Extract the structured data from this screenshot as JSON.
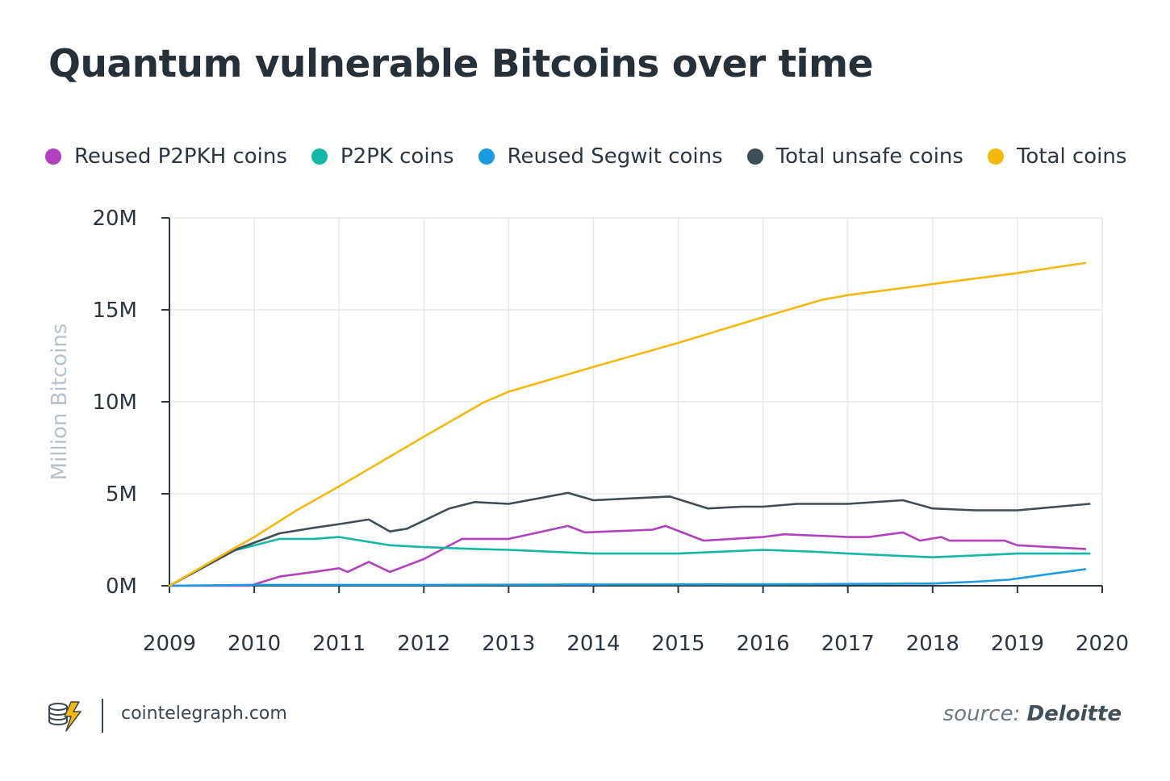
{
  "title": "Quantum vulnerable Bitcoins over time",
  "footer": {
    "site": "cointelegraph.com",
    "source_label": "source:",
    "source_name": "Deloitte"
  },
  "colors": {
    "axis": "#2b3640",
    "grid": "#e6e9ec",
    "ylabel": "#b7c2ca"
  },
  "chart_data": {
    "type": "line",
    "title": "Quantum vulnerable Bitcoins over time",
    "xlabel": "",
    "ylabel": "Million Bitcoins",
    "xlim": [
      2009,
      2020
    ],
    "ylim": [
      0,
      20
    ],
    "x_ticks": [
      2009,
      2010,
      2011,
      2012,
      2013,
      2014,
      2015,
      2016,
      2017,
      2018,
      2019,
      2020
    ],
    "x_tick_labels": [
      "2009",
      "2010",
      "2011",
      "2012",
      "2013",
      "2014",
      "2015",
      "2016",
      "2017",
      "2018",
      "2019",
      "2020"
    ],
    "y_ticks": [
      0,
      5,
      10,
      15,
      20
    ],
    "y_tick_labels": [
      "0M",
      "5M",
      "10M",
      "15M",
      "20M"
    ],
    "grid": true,
    "legend_position": "top",
    "series": [
      {
        "name": "Reused P2PKH coins",
        "color": "#b341bf",
        "points": [
          [
            2009.0,
            0
          ],
          [
            2009.95,
            0
          ],
          [
            2010.3,
            0.5
          ],
          [
            2010.7,
            0.75
          ],
          [
            2011.0,
            0.95
          ],
          [
            2011.1,
            0.75
          ],
          [
            2011.35,
            1.3
          ],
          [
            2011.6,
            0.75
          ],
          [
            2012.0,
            1.45
          ],
          [
            2012.45,
            2.55
          ],
          [
            2013.0,
            2.55
          ],
          [
            2013.7,
            3.25
          ],
          [
            2013.9,
            2.9
          ],
          [
            2014.7,
            3.05
          ],
          [
            2014.85,
            3.25
          ],
          [
            2015.3,
            2.45
          ],
          [
            2016.0,
            2.65
          ],
          [
            2016.25,
            2.8
          ],
          [
            2017.0,
            2.65
          ],
          [
            2017.25,
            2.65
          ],
          [
            2017.65,
            2.9
          ],
          [
            2017.85,
            2.45
          ],
          [
            2018.1,
            2.65
          ],
          [
            2018.2,
            2.45
          ],
          [
            2018.85,
            2.45
          ],
          [
            2019.0,
            2.2
          ],
          [
            2019.8,
            2.0
          ]
        ]
      },
      {
        "name": "P2PK coins",
        "color": "#14b8a6",
        "points": [
          [
            2009.0,
            0
          ],
          [
            2009.75,
            1.9
          ],
          [
            2010.3,
            2.55
          ],
          [
            2010.7,
            2.55
          ],
          [
            2011.0,
            2.65
          ],
          [
            2011.6,
            2.2
          ],
          [
            2012.0,
            2.1
          ],
          [
            2012.6,
            2.0
          ],
          [
            2013.0,
            1.95
          ],
          [
            2013.5,
            1.85
          ],
          [
            2014.0,
            1.75
          ],
          [
            2015.0,
            1.75
          ],
          [
            2015.5,
            1.85
          ],
          [
            2016.0,
            1.95
          ],
          [
            2016.6,
            1.85
          ],
          [
            2017.0,
            1.75
          ],
          [
            2017.5,
            1.65
          ],
          [
            2018.0,
            1.55
          ],
          [
            2018.5,
            1.65
          ],
          [
            2019.0,
            1.75
          ],
          [
            2019.85,
            1.75
          ]
        ]
      },
      {
        "name": "Reused Segwit coins",
        "color": "#1a9be0",
        "points": [
          [
            2009.0,
            0
          ],
          [
            2010.0,
            0.05
          ],
          [
            2012.0,
            0.05
          ],
          [
            2014.0,
            0.07
          ],
          [
            2016.0,
            0.08
          ],
          [
            2018.0,
            0.12
          ],
          [
            2018.5,
            0.22
          ],
          [
            2018.9,
            0.33
          ],
          [
            2019.4,
            0.65
          ],
          [
            2019.8,
            0.9
          ]
        ]
      },
      {
        "name": "Total unsafe coins",
        "color": "#3e4e59",
        "points": [
          [
            2009.0,
            0
          ],
          [
            2009.8,
            2.0
          ],
          [
            2010.3,
            2.85
          ],
          [
            2010.7,
            3.15
          ],
          [
            2011.0,
            3.35
          ],
          [
            2011.35,
            3.6
          ],
          [
            2011.6,
            2.95
          ],
          [
            2011.8,
            3.1
          ],
          [
            2012.3,
            4.2
          ],
          [
            2012.6,
            4.55
          ],
          [
            2013.0,
            4.45
          ],
          [
            2013.7,
            5.05
          ],
          [
            2014.0,
            4.65
          ],
          [
            2014.9,
            4.85
          ],
          [
            2015.35,
            4.2
          ],
          [
            2015.75,
            4.3
          ],
          [
            2016.0,
            4.3
          ],
          [
            2016.4,
            4.45
          ],
          [
            2017.0,
            4.45
          ],
          [
            2017.65,
            4.65
          ],
          [
            2018.0,
            4.2
          ],
          [
            2018.5,
            4.1
          ],
          [
            2019.0,
            4.1
          ],
          [
            2019.85,
            4.45
          ]
        ]
      },
      {
        "name": "Total coins",
        "color": "#f6b70f",
        "points": [
          [
            2009.0,
            0
          ],
          [
            2009.75,
            2.0
          ],
          [
            2010.0,
            2.65
          ],
          [
            2010.5,
            4.1
          ],
          [
            2011.0,
            5.4
          ],
          [
            2012.0,
            8.1
          ],
          [
            2012.7,
            9.95
          ],
          [
            2013.0,
            10.55
          ],
          [
            2014.0,
            11.9
          ],
          [
            2015.0,
            13.2
          ],
          [
            2016.0,
            14.6
          ],
          [
            2016.7,
            15.55
          ],
          [
            2017.0,
            15.8
          ],
          [
            2018.0,
            16.4
          ],
          [
            2019.0,
            17.0
          ],
          [
            2019.8,
            17.55
          ]
        ]
      }
    ]
  }
}
